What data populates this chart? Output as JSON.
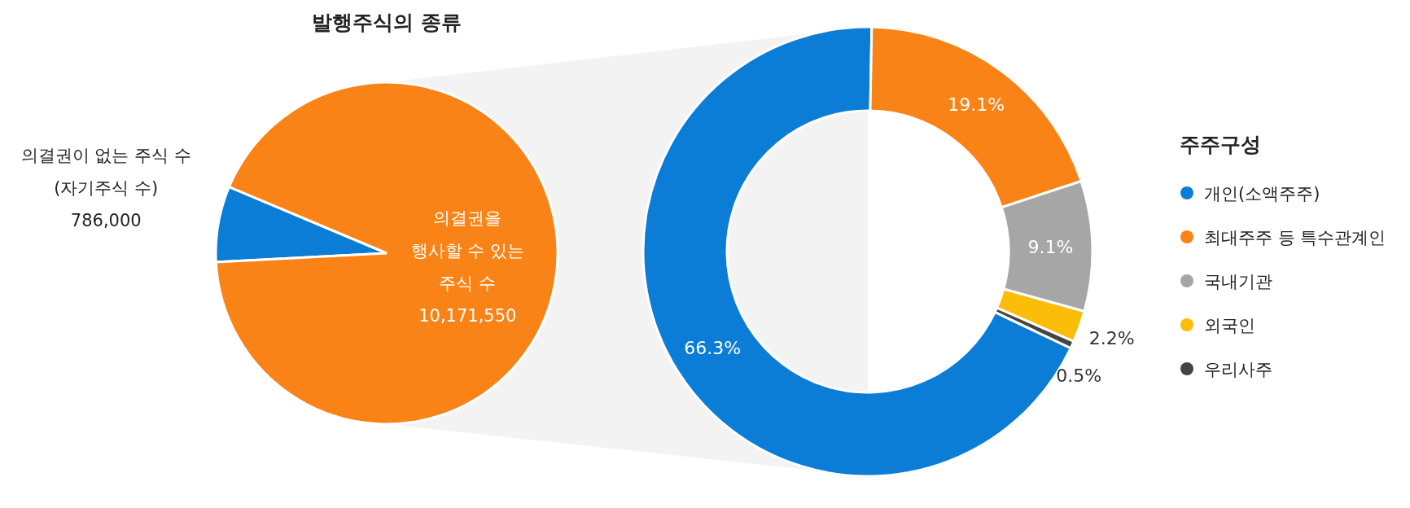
{
  "chart_data": [
    {
      "type": "pie",
      "title": "발행주식의 종류",
      "categories": [
        "의결권이 없는 주식 수 (자기주식 수)",
        "의결권을 행사할 수 있는 주식 수"
      ],
      "values": [
        786000,
        10171550
      ],
      "colors": [
        "#0b7dd6",
        "#f98316"
      ],
      "value_labels": [
        "786,000",
        "10,171,550"
      ]
    },
    {
      "type": "donut",
      "legend_title": "주주구성",
      "legend": "right",
      "categories": [
        "개인(소액주주)",
        "최대주주 등 특수관계인",
        "국내기관",
        "외국인",
        "우리사주"
      ],
      "values": [
        66.3,
        19.1,
        9.1,
        2.2,
        0.5
      ],
      "colors": [
        "#0b7dd6",
        "#f98316",
        "#a6a6a6",
        "#fbbd08",
        "#444444"
      ],
      "value_labels": [
        "66.3%",
        "19.1%",
        "9.1%",
        "2.2%",
        "0.5%"
      ]
    }
  ]
}
